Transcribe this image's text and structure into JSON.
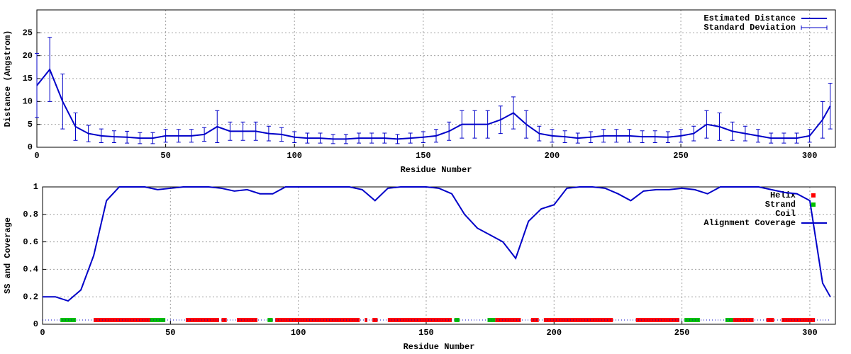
{
  "chart_data": [
    {
      "type": "line",
      "xlabel": "Residue Number",
      "ylabel": "Distance (Angstrom)",
      "xlim": [
        0,
        310
      ],
      "ylim": [
        0,
        30
      ],
      "xticks": [
        0,
        50,
        100,
        150,
        200,
        250,
        300
      ],
      "yticks": [
        0,
        5,
        10,
        15,
        20,
        25
      ],
      "grid": true,
      "legend": "upper right",
      "series": [
        {
          "name": "Estimated Distance",
          "error_name": "Standard Deviation",
          "color": "#0000c8",
          "x": [
            0,
            5,
            10,
            15,
            20,
            25,
            30,
            35,
            40,
            45,
            50,
            55,
            60,
            65,
            70,
            75,
            80,
            85,
            90,
            95,
            100,
            105,
            110,
            115,
            120,
            125,
            130,
            135,
            140,
            145,
            150,
            155,
            160,
            165,
            170,
            175,
            180,
            185,
            190,
            195,
            200,
            205,
            210,
            215,
            220,
            225,
            230,
            235,
            240,
            245,
            250,
            255,
            260,
            265,
            270,
            275,
            280,
            285,
            290,
            295,
            300,
            305,
            308
          ],
          "values": [
            13.5,
            17,
            10,
            4.5,
            3,
            2.5,
            2.3,
            2.2,
            2,
            2,
            2.5,
            2.5,
            2.5,
            2.8,
            4.5,
            3.5,
            3.5,
            3.5,
            3,
            2.8,
            2.2,
            2,
            2,
            1.8,
            1.8,
            2,
            2,
            2,
            1.8,
            2,
            2.2,
            2.5,
            3.5,
            5,
            5,
            5,
            6,
            7.5,
            5,
            3,
            2.5,
            2.3,
            2,
            2.2,
            2.5,
            2.5,
            2.5,
            2.3,
            2.3,
            2.2,
            2.5,
            3,
            5,
            4.5,
            3.5,
            3,
            2.5,
            2,
            2,
            2,
            2.5,
            6,
            9
          ],
          "errors": [
            7,
            7,
            6,
            3,
            1.8,
            1.5,
            1.3,
            1.3,
            1.2,
            1.2,
            1.4,
            1.4,
            1.4,
            1.5,
            3.5,
            2,
            2,
            2,
            1.6,
            1.5,
            1.2,
            1.1,
            1.1,
            1,
            1,
            1.1,
            1.1,
            1.1,
            1,
            1.1,
            1.2,
            1.4,
            2,
            3,
            3,
            3,
            3,
            3.5,
            3,
            1.6,
            1.4,
            1.3,
            1.1,
            1.2,
            1.4,
            1.4,
            1.4,
            1.3,
            1.3,
            1.2,
            1.4,
            1.6,
            3,
            3,
            2,
            1.6,
            1.4,
            1.1,
            1.1,
            1.1,
            1.4,
            4,
            5
          ]
        }
      ]
    },
    {
      "type": "line",
      "xlabel": "Residue Number",
      "ylabel": "SS and Coverage",
      "xlim": [
        0,
        310
      ],
      "ylim": [
        0,
        1
      ],
      "xticks": [
        0,
        50,
        100,
        150,
        200,
        250,
        300
      ],
      "yticks": [
        0,
        0.2,
        0.4,
        0.6,
        0.8,
        1
      ],
      "grid": true,
      "legend": "upper right",
      "series": [
        {
          "name": "Helix",
          "color": "#ff0000",
          "style": "bar",
          "segments": [
            [
              20,
              42
            ],
            [
              56,
              69
            ],
            [
              70,
              72
            ],
            [
              76,
              84
            ],
            [
              91,
              124
            ],
            [
              126,
              127
            ],
            [
              129,
              131
            ],
            [
              135,
              160
            ],
            [
              177,
              187
            ],
            [
              191,
              194
            ],
            [
              196,
              223
            ],
            [
              232,
              249
            ],
            [
              270,
              278
            ],
            [
              283,
              286
            ],
            [
              289,
              302
            ]
          ]
        },
        {
          "name": "Strand",
          "color": "#00c000",
          "style": "bar",
          "segments": [
            [
              7,
              13
            ],
            [
              42,
              48
            ],
            [
              88,
              90
            ],
            [
              161,
              163
            ],
            [
              174,
              177
            ],
            [
              251,
              257
            ],
            [
              267,
              270
            ]
          ]
        },
        {
          "name": "Coil",
          "color": "#0000c8",
          "style": "dots",
          "segments": [
            [
              0,
              308
            ]
          ]
        },
        {
          "name": "Alignment Coverage",
          "color": "#0000c8",
          "x": [
            0,
            5,
            10,
            15,
            20,
            25,
            30,
            35,
            40,
            45,
            50,
            55,
            60,
            65,
            70,
            75,
            80,
            85,
            90,
            95,
            100,
            105,
            110,
            115,
            120,
            125,
            130,
            135,
            140,
            145,
            150,
            155,
            160,
            165,
            170,
            175,
            180,
            185,
            190,
            195,
            200,
            205,
            210,
            215,
            220,
            225,
            230,
            235,
            240,
            245,
            250,
            255,
            260,
            265,
            270,
            275,
            280,
            285,
            290,
            295,
            300,
            305,
            308
          ],
          "values": [
            0.2,
            0.2,
            0.17,
            0.25,
            0.5,
            0.9,
            1,
            1,
            1,
            0.98,
            0.99,
            1,
            1,
            1,
            0.99,
            0.97,
            0.98,
            0.95,
            0.95,
            1,
            1,
            1,
            1,
            1,
            1,
            0.98,
            0.9,
            0.99,
            1,
            1,
            1,
            0.99,
            0.95,
            0.8,
            0.7,
            0.65,
            0.6,
            0.48,
            0.75,
            0.84,
            0.87,
            0.99,
            1,
            1,
            0.99,
            0.95,
            0.9,
            0.97,
            0.98,
            0.98,
            0.99,
            0.98,
            0.95,
            1,
            1,
            1,
            1,
            0.98,
            0.96,
            0.95,
            0.9,
            0.3,
            0.2
          ]
        }
      ]
    }
  ]
}
